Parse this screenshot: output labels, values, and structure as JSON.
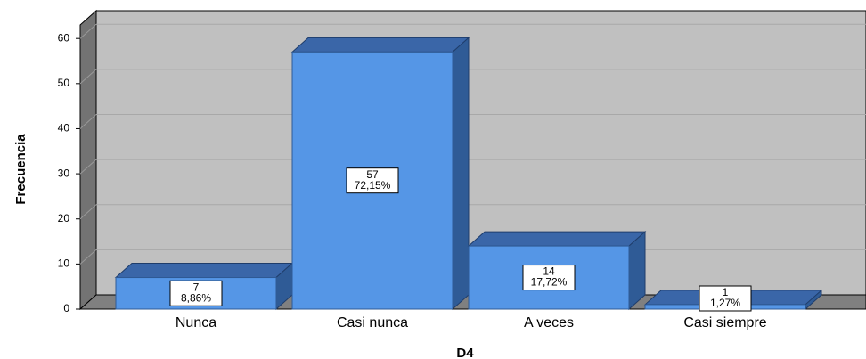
{
  "chart_data": {
    "type": "bar3d",
    "x_label": "D4",
    "y_label": "Frecuencia",
    "categories": [
      "Nunca",
      "Casi nunca",
      "A veces",
      "Casi siempre"
    ],
    "values": [
      7,
      57,
      14,
      1
    ],
    "percent_labels": [
      "8,86%",
      "72,15%",
      "17,72%",
      "1,27%"
    ],
    "color": "#5596e6",
    "ylim": [
      0,
      63
    ],
    "yticks": [
      0,
      10,
      20,
      30,
      40,
      50,
      60
    ],
    "grid": true
  }
}
